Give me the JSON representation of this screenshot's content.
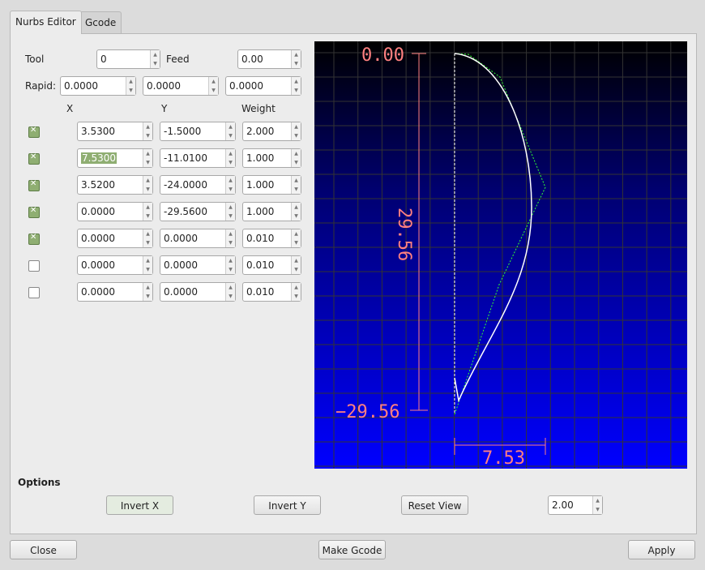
{
  "tabs": [
    {
      "label": "Nurbs Editor"
    },
    {
      "label": "Gcode"
    }
  ],
  "tool": {
    "label": "Tool",
    "value": "0"
  },
  "feed": {
    "label": "Feed",
    "value": "0.00"
  },
  "rapid": {
    "label": "Rapid:",
    "x": "0.0000",
    "y": "0.0000",
    "z": "0.0000"
  },
  "columns": {
    "x": "X",
    "y": "Y",
    "weight": "Weight"
  },
  "rows": [
    {
      "checked": true,
      "x": "3.5300",
      "y": "-1.5000",
      "w": "2.000"
    },
    {
      "checked": true,
      "x": "7.5300",
      "y": "-11.0100",
      "w": "1.000"
    },
    {
      "checked": true,
      "x": "3.5200",
      "y": "-24.0000",
      "w": "1.000"
    },
    {
      "checked": true,
      "x": "0.0000",
      "y": "-29.5600",
      "w": "1.000"
    },
    {
      "checked": true,
      "x": "0.0000",
      "y": "0.0000",
      "w": "0.010"
    },
    {
      "checked": false,
      "x": "0.0000",
      "y": "0.0000",
      "w": "0.010"
    },
    {
      "checked": false,
      "x": "0.0000",
      "y": "0.0000",
      "w": "0.010"
    }
  ],
  "preview": {
    "top_label": "0.00",
    "bottom_label": "−29.56",
    "height_label": "29.56",
    "width_label": "7.53",
    "label_color": "#ff8080"
  },
  "options": {
    "title": "Options",
    "invert_x": "Invert X",
    "invert_y": "Invert Y",
    "reset_view": "Reset View",
    "scale": "2.00"
  },
  "footer": {
    "close": "Close",
    "make_gcode": "Make Gcode",
    "apply": "Apply"
  }
}
